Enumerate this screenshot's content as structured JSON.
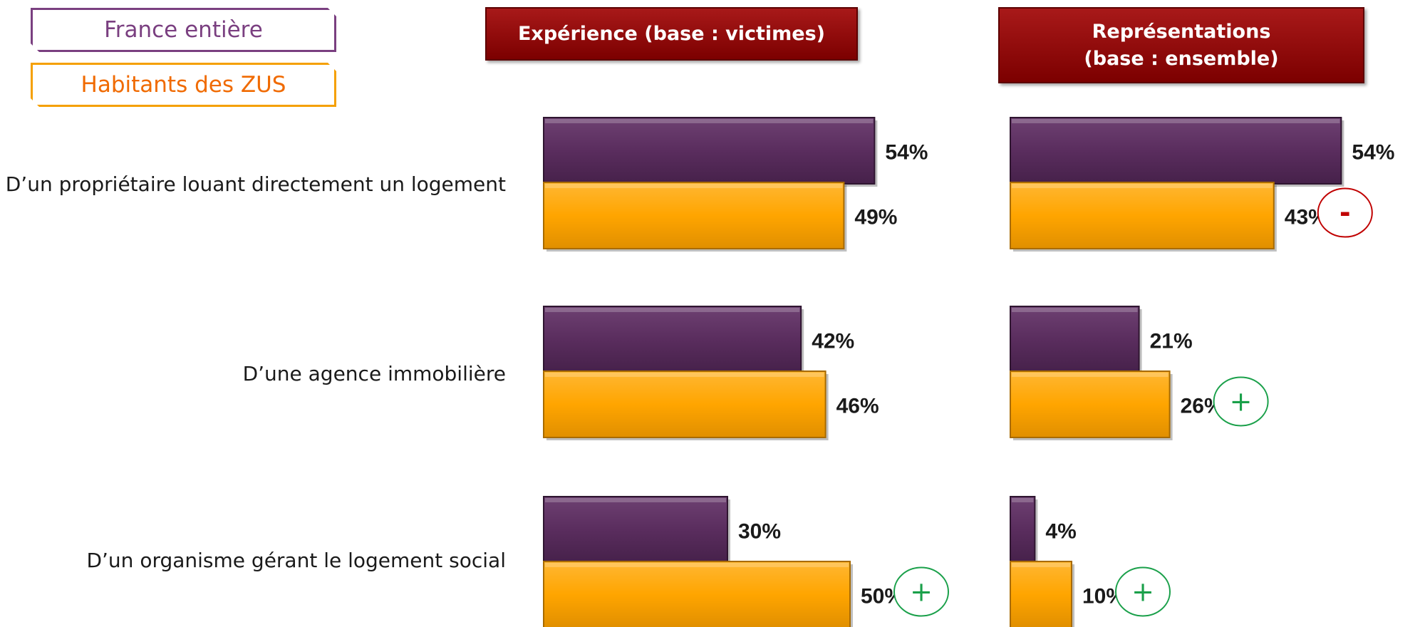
{
  "legend": {
    "france_label": "France entière",
    "zus_label": "Habitants des ZUS"
  },
  "panels": [
    {
      "title": "Expérience (base : victimes)"
    },
    {
      "title": "Représentations\n(base : ensemble)"
    }
  ],
  "colors": {
    "france": "#5a2d5e",
    "zus": "#ffa500",
    "minus": "#c00000",
    "plus": "#1aa04a",
    "header": "#8b0000"
  },
  "chart_data": [
    {
      "type": "bar",
      "orientation": "horizontal",
      "title": "Expérience (base : victimes)",
      "categories": [
        "D’un propriétaire louant directement un logement",
        "D’une agence immobilière",
        "D’un organisme gérant le logement social"
      ],
      "series": [
        {
          "name": "France entière",
          "values": [
            54,
            42,
            30
          ],
          "labels": [
            "54%",
            "42%",
            "30%"
          ],
          "markers": [
            "",
            "",
            ""
          ]
        },
        {
          "name": "Habitants des ZUS",
          "values": [
            49,
            46,
            50
          ],
          "labels": [
            "49%",
            "46%",
            "50%"
          ],
          "markers": [
            "",
            "",
            "+"
          ]
        }
      ]
    },
    {
      "type": "bar",
      "orientation": "horizontal",
      "title": "Représentations (base : ensemble)",
      "categories": [
        "D’un propriétaire louant directement un logement",
        "D’une agence immobilière",
        "D’un organisme gérant le logement social"
      ],
      "series": [
        {
          "name": "France entière",
          "values": [
            54,
            21,
            4
          ],
          "labels": [
            "54%",
            "21%",
            "4%"
          ],
          "markers": [
            "",
            "",
            ""
          ]
        },
        {
          "name": "Habitants des ZUS",
          "values": [
            43,
            26,
            10
          ],
          "labels": [
            "43%",
            "26%",
            "10%"
          ],
          "markers": [
            "-",
            "+",
            "+"
          ]
        }
      ]
    }
  ]
}
